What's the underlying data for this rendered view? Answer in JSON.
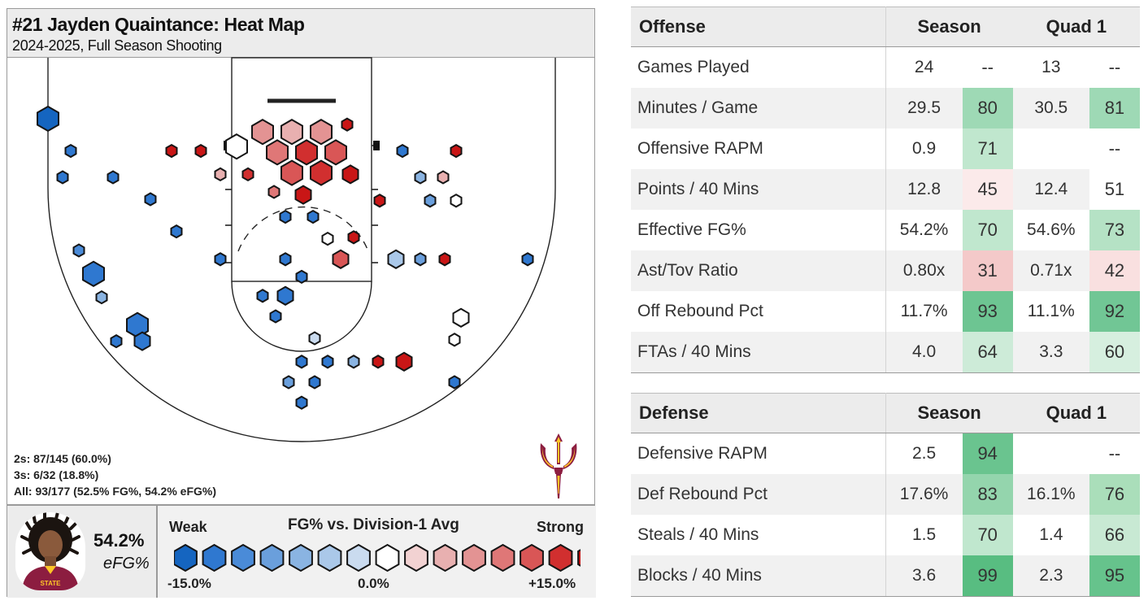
{
  "card": {
    "title": "#21 Jayden Quaintance: Heat Map",
    "subtitle": "2024-2025, Full Season Shooting"
  },
  "shot_summary": {
    "twos": "2s: 87/145 (60.0%)",
    "threes": "3s: 6/32 (18.8%)",
    "all": "All: 93/177 (52.5% FG%, 54.2% eFG%)"
  },
  "player_efg": {
    "value": "54.2%",
    "label": "eFG%"
  },
  "legend": {
    "weak": "Weak",
    "title": "FG% vs. Division-1 Avg",
    "strong": "Strong",
    "min": "-15.0%",
    "mid": "0.0%",
    "max": "+15.0%",
    "colors": [
      "#1565c0",
      "#2f78d0",
      "#4a8bd8",
      "#6a9fdc",
      "#8ab4e2",
      "#aac8e9",
      "#cadbef",
      "#ffffff",
      "#f2d2d2",
      "#e8b0b0",
      "#e39393",
      "#df7777",
      "#d95656",
      "#d12f2f",
      "#c91616"
    ]
  },
  "chart_data": {
    "type": "heatmap",
    "title": "#21 Jayden Quaintance: Heat Map",
    "subtitle": "2024-2025, Full Season Shooting",
    "description_scale": "FG% vs. Division-1 Avg",
    "scale_range_pct": [
      -15.0,
      15.0
    ],
    "shot_zones": [
      {
        "court_x": -31.2,
        "court_y": 37.0,
        "size": 3,
        "level": 0
      },
      {
        "court_x": -28.4,
        "court_y": 32.6,
        "size": 1,
        "level": 1
      },
      {
        "court_x": -29.4,
        "court_y": 29.0,
        "size": 1,
        "level": 1
      },
      {
        "court_x": -23.2,
        "court_y": 29.0,
        "size": 1,
        "level": 1
      },
      {
        "court_x": -16.0,
        "court_y": 32.6,
        "size": 1,
        "level": 14
      },
      {
        "court_x": -12.4,
        "court_y": 32.6,
        "size": 1,
        "level": 14
      },
      {
        "court_x": -18.6,
        "court_y": 26.0,
        "size": 1,
        "level": 1
      },
      {
        "court_x": -15.4,
        "court_y": 21.6,
        "size": 1,
        "level": 1
      },
      {
        "court_x": -27.4,
        "court_y": 19.0,
        "size": 1,
        "level": 2
      },
      {
        "court_x": -25.6,
        "court_y": 15.8,
        "size": 3,
        "level": 1
      },
      {
        "court_x": -24.6,
        "court_y": 12.6,
        "size": 1,
        "level": 4
      },
      {
        "court_x": -20.2,
        "court_y": 8.8,
        "size": 3,
        "level": 1
      },
      {
        "court_x": -22.8,
        "court_y": 6.6,
        "size": 1,
        "level": 1
      },
      {
        "court_x": -19.6,
        "court_y": 6.6,
        "size": 2,
        "level": 1
      },
      {
        "court_x": -8.0,
        "court_y": 33.2,
        "size": 3,
        "level": 7
      },
      {
        "court_x": -4.8,
        "court_y": 35.2,
        "size": 3,
        "level": 10
      },
      {
        "court_x": -1.2,
        "court_y": 35.2,
        "size": 3,
        "level": 9
      },
      {
        "court_x": 2.4,
        "court_y": 35.2,
        "size": 3,
        "level": 10
      },
      {
        "court_x": -3.0,
        "court_y": 32.4,
        "size": 3,
        "level": 11
      },
      {
        "court_x": 0.6,
        "court_y": 32.4,
        "size": 3,
        "level": 13
      },
      {
        "court_x": 4.2,
        "court_y": 32.4,
        "size": 3,
        "level": 12
      },
      {
        "court_x": -1.2,
        "court_y": 29.6,
        "size": 3,
        "level": 12
      },
      {
        "court_x": 2.4,
        "court_y": 29.6,
        "size": 3,
        "level": 13
      },
      {
        "court_x": 6.0,
        "court_y": 29.4,
        "size": 2,
        "level": 14
      },
      {
        "court_x": 5.6,
        "court_y": 36.2,
        "size": 1,
        "level": 14
      },
      {
        "court_x": -10.0,
        "court_y": 29.4,
        "size": 1,
        "level": 9
      },
      {
        "court_x": -6.6,
        "court_y": 29.4,
        "size": 1,
        "level": 13
      },
      {
        "court_x": -3.4,
        "court_y": 27.0,
        "size": 1,
        "level": 11
      },
      {
        "court_x": 0.2,
        "court_y": 26.6,
        "size": 2,
        "level": 14
      },
      {
        "court_x": -2.0,
        "court_y": 23.6,
        "size": 1,
        "level": 1
      },
      {
        "court_x": 1.4,
        "court_y": 23.6,
        "size": 1,
        "level": 1
      },
      {
        "court_x": 3.2,
        "court_y": 20.6,
        "size": 1,
        "level": 7
      },
      {
        "court_x": 6.4,
        "court_y": 20.8,
        "size": 1,
        "level": 14
      },
      {
        "court_x": -10.0,
        "court_y": 17.8,
        "size": 1,
        "level": 1
      },
      {
        "court_x": -2.0,
        "court_y": 17.8,
        "size": 1,
        "level": 1
      },
      {
        "court_x": 4.8,
        "court_y": 17.8,
        "size": 2,
        "level": 12
      },
      {
        "court_x": 0.0,
        "court_y": 15.4,
        "size": 1,
        "level": 1
      },
      {
        "court_x": -4.8,
        "court_y": 12.8,
        "size": 1,
        "level": 1
      },
      {
        "court_x": -2.0,
        "court_y": 12.8,
        "size": 2,
        "level": 1
      },
      {
        "court_x": -3.2,
        "court_y": 10.0,
        "size": 1,
        "level": 1
      },
      {
        "court_x": 1.6,
        "court_y": 7.0,
        "size": 1,
        "level": 6
      },
      {
        "court_x": 12.4,
        "court_y": 32.6,
        "size": 1,
        "level": 1
      },
      {
        "court_x": 19.0,
        "court_y": 32.6,
        "size": 1,
        "level": 14
      },
      {
        "court_x": 14.6,
        "court_y": 29.0,
        "size": 1,
        "level": 4
      },
      {
        "court_x": 17.4,
        "court_y": 29.0,
        "size": 1,
        "level": 9
      },
      {
        "court_x": 9.6,
        "court_y": 25.8,
        "size": 1,
        "level": 14
      },
      {
        "court_x": 15.8,
        "court_y": 25.8,
        "size": 1,
        "level": 3
      },
      {
        "court_x": 19.0,
        "court_y": 25.8,
        "size": 1,
        "level": 7
      },
      {
        "court_x": 11.6,
        "court_y": 17.8,
        "size": 2,
        "level": 5
      },
      {
        "court_x": 14.6,
        "court_y": 17.8,
        "size": 1,
        "level": 3
      },
      {
        "court_x": 17.6,
        "court_y": 17.8,
        "size": 1,
        "level": 14
      },
      {
        "court_x": 27.8,
        "court_y": 17.8,
        "size": 1,
        "level": 1
      },
      {
        "court_x": 19.6,
        "court_y": 9.8,
        "size": 2,
        "level": 7
      },
      {
        "court_x": 18.8,
        "court_y": 6.8,
        "size": 1,
        "level": 7
      },
      {
        "court_x": 0.0,
        "court_y": 3.8,
        "size": 1,
        "level": 1
      },
      {
        "court_x": 3.2,
        "court_y": 3.8,
        "size": 1,
        "level": 1
      },
      {
        "court_x": 6.4,
        "court_y": 3.8,
        "size": 1,
        "level": 4
      },
      {
        "court_x": 9.4,
        "court_y": 3.8,
        "size": 1,
        "level": 14
      },
      {
        "court_x": 12.6,
        "court_y": 3.8,
        "size": 2,
        "level": 14
      },
      {
        "court_x": -1.6,
        "court_y": 1.0,
        "size": 1,
        "level": 3
      },
      {
        "court_x": 1.6,
        "court_y": 1.0,
        "size": 1,
        "level": 1
      },
      {
        "court_x": 18.8,
        "court_y": 1.0,
        "size": 1,
        "level": 1
      },
      {
        "court_x": 0.0,
        "court_y": -1.8,
        "size": 1,
        "level": 1
      }
    ]
  },
  "offense_table": {
    "header": {
      "label": "Offense",
      "season": "Season",
      "quad": "Quad 1"
    },
    "rows": [
      {
        "label": "Games Played",
        "season_val": "24",
        "season_pct": "--",
        "quad_val": "13",
        "quad_pct": "--",
        "season_color": "",
        "quad_color": "",
        "shade": false
      },
      {
        "label": "Minutes / Game",
        "season_val": "29.5",
        "season_pct": "80",
        "quad_val": "30.5",
        "quad_pct": "81",
        "season_color": "#9ed9b5",
        "quad_color": "#9ed9b5",
        "shade": true
      },
      {
        "label": "Offensive RAPM",
        "season_val": "0.9",
        "season_pct": "71",
        "quad_val": "",
        "quad_pct": "--",
        "season_color": "#c0e7ce",
        "quad_color": "",
        "shade": false
      },
      {
        "label": "Points / 40 Mins",
        "season_val": "12.8",
        "season_pct": "45",
        "quad_val": "12.4",
        "quad_pct": "51",
        "season_color": "#fbeaea",
        "quad_color": "#ffffff",
        "shade": true
      },
      {
        "label": "Effective FG%",
        "season_val": "54.2%",
        "season_pct": "70",
        "quad_val": "54.6%",
        "quad_pct": "73",
        "season_color": "#c0e7ce",
        "quad_color": "#b5e2c5",
        "shade": false
      },
      {
        "label": "Ast/Tov Ratio",
        "season_val": "0.80x",
        "season_pct": "31",
        "quad_val": "0.71x",
        "quad_pct": "42",
        "season_color": "#f4c9c9",
        "quad_color": "#f9e0e0",
        "shade": true
      },
      {
        "label": "Off Rebound Pct",
        "season_val": "11.7%",
        "season_pct": "93",
        "quad_val": "11.1%",
        "quad_pct": "92",
        "season_color": "#6dc592",
        "quad_color": "#71c695",
        "shade": false
      },
      {
        "label": "FTAs / 40 Mins",
        "season_val": "4.0",
        "season_pct": "64",
        "quad_val": "3.3",
        "quad_pct": "60",
        "season_color": "#cdebd8",
        "quad_color": "#d6efdf",
        "shade": true
      }
    ]
  },
  "defense_table": {
    "header": {
      "label": "Defense",
      "season": "Season",
      "quad": "Quad 1"
    },
    "rows": [
      {
        "label": "Defensive RAPM",
        "season_val": "2.5",
        "season_pct": "94",
        "quad_val": "",
        "quad_pct": "--",
        "season_color": "#6ac48f",
        "quad_color": "",
        "shade": false
      },
      {
        "label": "Def Rebound Pct",
        "season_val": "17.6%",
        "season_pct": "83",
        "quad_val": "16.1%",
        "quad_pct": "76",
        "season_color": "#94d5ad",
        "quad_color": "#aadeba",
        "shade": true
      },
      {
        "label": "Steals / 40 Mins",
        "season_val": "1.5",
        "season_pct": "70",
        "quad_val": "1.4",
        "quad_pct": "66",
        "season_color": "#c0e7ce",
        "quad_color": "#c8e9d3",
        "shade": false
      },
      {
        "label": "Blocks / 40 Mins",
        "season_val": "3.6",
        "season_pct": "99",
        "quad_val": "2.3",
        "quad_pct": "95",
        "season_color": "#58bd81",
        "quad_color": "#66c38c",
        "shade": true
      }
    ]
  }
}
